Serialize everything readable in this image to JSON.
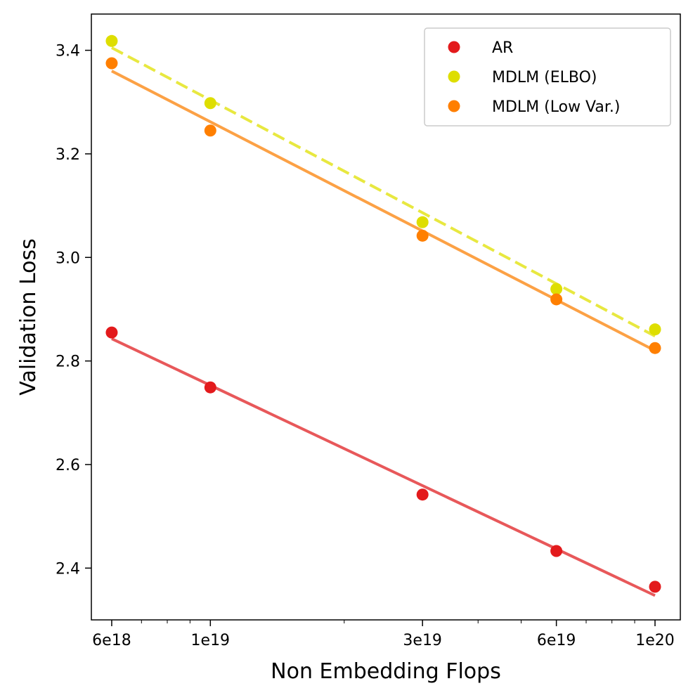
{
  "chart_data": {
    "type": "scatter",
    "xscale": "log",
    "xlabel": "Non Embedding Flops",
    "ylabel": "Validation Loss",
    "xlim": [
      5.4e+18,
      1.14e+20
    ],
    "ylim": [
      2.3,
      3.47
    ],
    "xticks": [
      {
        "value": 6e+18,
        "label": "6e18"
      },
      {
        "value": 1e+19,
        "label": "1e19"
      },
      {
        "value": 3e+19,
        "label": "3e19"
      },
      {
        "value": 6e+19,
        "label": "6e19"
      },
      {
        "value": 1e+20,
        "label": "1e20"
      }
    ],
    "xminorticks": [
      7e+18,
      8e+18,
      9e+18,
      2e+19,
      4e+19,
      5e+19,
      7e+19,
      8e+19,
      9e+19
    ],
    "yticks": [
      {
        "value": 2.4,
        "label": "2.4"
      },
      {
        "value": 2.6,
        "label": "2.6"
      },
      {
        "value": 2.8,
        "label": "2.8"
      },
      {
        "value": 3.0,
        "label": "3.0"
      },
      {
        "value": 3.2,
        "label": "3.2"
      },
      {
        "value": 3.4,
        "label": "3.4"
      }
    ],
    "legend_position": "top-right",
    "series": [
      {
        "name": "AR",
        "color": "#e31a1c",
        "line_color": "#e8585a",
        "line_style": "solid",
        "x": [
          6e+18,
          1e+19,
          3e+19,
          6e+19,
          1e+20
        ],
        "y": [
          2.855,
          2.749,
          2.542,
          2.433,
          2.364
        ],
        "fit": {
          "x": [
            6e+18,
            1e+20
          ],
          "y": [
            2.843,
            2.347
          ]
        }
      },
      {
        "name": "MDLM (ELBO)",
        "color": "#dede00",
        "line_color": "#e8e840",
        "line_style": "dashed",
        "x": [
          6e+18,
          1e+19,
          3e+19,
          6e+19,
          1e+20
        ],
        "y": [
          3.418,
          3.298,
          3.068,
          2.939,
          2.861
        ],
        "fit": {
          "x": [
            6e+18,
            1e+20
          ],
          "y": [
            3.405,
            2.848
          ]
        }
      },
      {
        "name": "MDLM (Low Var.)",
        "color": "#ff7f00",
        "line_color": "#fca145",
        "line_style": "solid",
        "x": [
          6e+18,
          1e+19,
          3e+19,
          6e+19,
          1e+20
        ],
        "y": [
          3.375,
          3.245,
          3.042,
          2.919,
          2.825
        ],
        "fit": {
          "x": [
            6e+18,
            1e+20
          ],
          "y": [
            3.36,
            2.82
          ]
        }
      }
    ]
  }
}
